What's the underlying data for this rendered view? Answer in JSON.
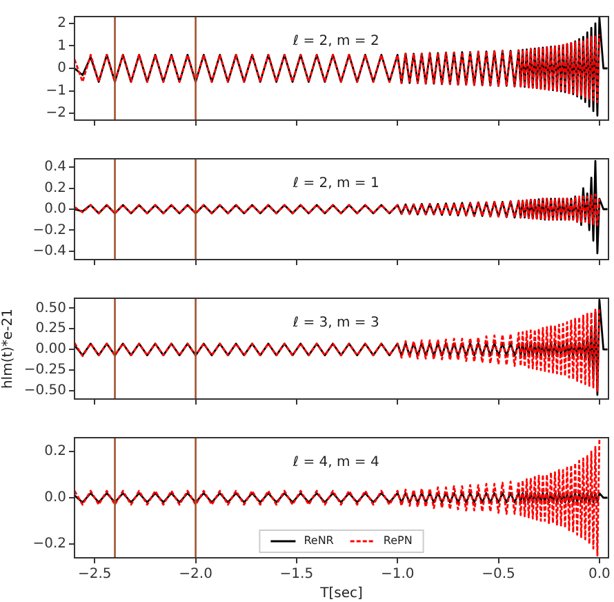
{
  "chart_data": [
    {
      "type": "line",
      "annotations": [
        "ℓ = 2, m = 2"
      ],
      "xlim": [
        -2.6,
        0.045
      ],
      "xticks": [
        {
          "value": -2.5,
          "label": null
        },
        {
          "value": -2.0,
          "label": null
        },
        {
          "value": -1.5,
          "label": null
        },
        {
          "value": -1.0,
          "label": null
        },
        {
          "value": -0.5,
          "label": null
        },
        {
          "value": 0.0,
          "label": null
        }
      ],
      "ylim": [
        -2.3,
        2.3
      ],
      "yticks": [
        {
          "value": -2,
          "label": "−2"
        },
        {
          "value": -1,
          "label": "−1"
        },
        0,
        1,
        2
      ],
      "tick_labels": "y",
      "marker": "none",
      "grid": false,
      "ref_lines": [
        {
          "axis": "x",
          "value": -2.4,
          "color": "#a0522d"
        },
        {
          "axis": "x",
          "value": -2.0,
          "color": "#a0522d"
        }
      ],
      "x": [
        -2.6,
        -2.56,
        -2.52,
        -2.48,
        -2.44,
        -2.4,
        -2.36,
        -2.32,
        -2.28,
        -2.24,
        -2.2,
        -2.16,
        -2.12,
        -2.08,
        -2.04,
        -2.0,
        -1.96,
        -1.92,
        -1.88,
        -1.84,
        -1.8,
        -1.76,
        -1.72,
        -1.68,
        -1.64,
        -1.6,
        -1.56,
        -1.52,
        -1.48,
        -1.44,
        -1.4,
        -1.36,
        -1.32,
        -1.28,
        -1.24,
        -1.2,
        -1.16,
        -1.12,
        -1.08,
        -1.04,
        -1.0,
        -0.98,
        -0.96,
        -0.94,
        -0.92,
        -0.9,
        -0.88,
        -0.86,
        -0.84,
        -0.82,
        -0.8,
        -0.78,
        -0.76,
        -0.74,
        -0.72,
        -0.7,
        -0.68,
        -0.66,
        -0.64,
        -0.62,
        -0.6,
        -0.58,
        -0.56,
        -0.54,
        -0.52,
        -0.5,
        -0.48,
        -0.46,
        -0.44,
        -0.42,
        -0.4,
        -0.39,
        -0.38,
        -0.37,
        -0.36,
        -0.35,
        -0.34,
        -0.33,
        -0.32,
        -0.31,
        -0.3,
        -0.29,
        -0.28,
        -0.27,
        -0.26,
        -0.25,
        -0.24,
        -0.23,
        -0.22,
        -0.21,
        -0.2,
        -0.19,
        -0.18,
        -0.17,
        -0.16,
        -0.15,
        -0.14,
        -0.13,
        -0.12,
        -0.11,
        -0.1,
        -0.09,
        -0.08,
        -0.07,
        -0.06,
        -0.05,
        -0.04,
        -0.03,
        -0.02,
        -0.01,
        0.0,
        0.02,
        0.04
      ],
      "series": [
        {
          "color": "#000000",
          "line_style": "solid",
          "values": [
            0,
            -0.3,
            0.5,
            -0.6,
            0.6,
            -0.6,
            0.6,
            -0.6,
            0.6,
            -0.6,
            0.6,
            -0.6,
            0.6,
            -0.6,
            0.6,
            -0.6,
            0.6,
            -0.6,
            0.6,
            -0.6,
            0.6,
            -0.6,
            0.6,
            -0.6,
            0.6,
            -0.6,
            0.6,
            -0.6,
            0.6,
            -0.6,
            0.6,
            -0.6,
            0.6,
            -0.6,
            0.6,
            -0.6,
            0.6,
            -0.6,
            0.6,
            -0.6,
            0.6,
            -0.65,
            0.65,
            -0.65,
            0.65,
            -0.65,
            0.65,
            -0.68,
            0.68,
            -0.68,
            0.68,
            -0.7,
            0.7,
            -0.7,
            0.7,
            -0.72,
            0.72,
            -0.72,
            0.72,
            -0.74,
            0.74,
            -0.75,
            0.75,
            -0.76,
            0.76,
            -0.78,
            0.78,
            -0.78,
            0.78,
            -0.8,
            0.8,
            -0.8,
            0.82,
            -0.82,
            0.84,
            -0.84,
            0.86,
            -0.86,
            0.88,
            -0.88,
            0.9,
            -0.9,
            0.92,
            -0.92,
            0.94,
            -0.95,
            0.96,
            -0.97,
            0.98,
            -1.0,
            1.0,
            -1.02,
            1.04,
            -1.06,
            1.08,
            -1.1,
            1.12,
            -1.15,
            1.2,
            -1.25,
            1.3,
            -1.35,
            1.4,
            -1.5,
            1.6,
            -1.7,
            1.8,
            -1.9,
            2.0,
            -2.1,
            2.25,
            0,
            0
          ]
        },
        {
          "color": "#ff0000",
          "line_style": "dashed",
          "values": [
            0.4,
            -0.6,
            0.6,
            -0.6,
            0.6,
            -0.6,
            0.6,
            -0.6,
            0.6,
            -0.6,
            0.6,
            -0.6,
            0.6,
            -0.6,
            0.6,
            -0.6,
            0.6,
            -0.6,
            0.6,
            -0.6,
            0.6,
            -0.6,
            0.6,
            -0.6,
            0.6,
            -0.6,
            0.6,
            -0.6,
            0.6,
            -0.6,
            0.6,
            -0.6,
            0.6,
            -0.6,
            0.6,
            -0.6,
            0.6,
            -0.6,
            0.6,
            -0.6,
            0.6,
            -0.65,
            0.65,
            -0.65,
            0.65,
            -0.65,
            0.65,
            -0.68,
            0.68,
            -0.68,
            0.68,
            -0.7,
            0.7,
            -0.7,
            0.7,
            -0.72,
            0.72,
            -0.72,
            0.72,
            -0.74,
            0.74,
            -0.75,
            0.75,
            -0.76,
            0.76,
            -0.78,
            0.78,
            -0.78,
            0.78,
            -0.8,
            0.8,
            -0.8,
            0.82,
            -0.82,
            0.84,
            -0.84,
            0.86,
            -0.86,
            0.88,
            -0.88,
            0.9,
            -0.9,
            0.92,
            -0.92,
            0.94,
            -0.95,
            0.96,
            -0.97,
            0.98,
            -1.0,
            1.0,
            -1.02,
            1.04,
            -1.06,
            1.08,
            -1.1,
            1.12,
            -1.14,
            1.16,
            -1.18,
            1.2,
            -1.22,
            1.25,
            -1.28,
            1.3,
            -1.35,
            1.4,
            -1.42,
            1.45,
            -1.5,
            1.5,
            null,
            null
          ]
        }
      ]
    },
    {
      "type": "line",
      "annotations": [
        "ℓ = 2, m = 1"
      ],
      "xlim": [
        -2.6,
        0.045
      ],
      "xticks": [
        {
          "value": -2.5,
          "label": null
        },
        {
          "value": -2.0,
          "label": null
        },
        {
          "value": -1.5,
          "label": null
        },
        {
          "value": -1.0,
          "label": null
        },
        {
          "value": -0.5,
          "label": null
        },
        {
          "value": 0.0,
          "label": null
        }
      ],
      "ylim": [
        -0.48,
        0.48
      ],
      "yticks": [
        {
          "value": -0.4,
          "label": "−0.4"
        },
        {
          "value": -0.2,
          "label": "−0.2"
        },
        {
          "value": 0,
          "label": "0.0"
        },
        0.2,
        0.4
      ],
      "tick_labels": "y",
      "marker": "none",
      "grid": false,
      "ref_lines": [
        {
          "axis": "x",
          "value": -2.4,
          "color": "#a0522d"
        },
        {
          "axis": "x",
          "value": -2.0,
          "color": "#a0522d"
        }
      ],
      "x": [
        -2.6,
        -2.56,
        -2.52,
        -2.48,
        -2.44,
        -2.4,
        -2.36,
        -2.32,
        -2.28,
        -2.24,
        -2.2,
        -2.16,
        -2.12,
        -2.08,
        -2.04,
        -2.0,
        -1.96,
        -1.92,
        -1.88,
        -1.84,
        -1.8,
        -1.76,
        -1.72,
        -1.68,
        -1.64,
        -1.6,
        -1.56,
        -1.52,
        -1.48,
        -1.44,
        -1.4,
        -1.36,
        -1.32,
        -1.28,
        -1.24,
        -1.2,
        -1.16,
        -1.12,
        -1.08,
        -1.04,
        -1.0,
        -0.98,
        -0.96,
        -0.94,
        -0.92,
        -0.9,
        -0.88,
        -0.86,
        -0.84,
        -0.82,
        -0.8,
        -0.78,
        -0.76,
        -0.74,
        -0.72,
        -0.7,
        -0.68,
        -0.66,
        -0.64,
        -0.62,
        -0.6,
        -0.58,
        -0.56,
        -0.54,
        -0.52,
        -0.5,
        -0.48,
        -0.46,
        -0.44,
        -0.42,
        -0.4,
        -0.39,
        -0.38,
        -0.37,
        -0.36,
        -0.35,
        -0.34,
        -0.33,
        -0.32,
        -0.31,
        -0.3,
        -0.29,
        -0.28,
        -0.27,
        -0.26,
        -0.25,
        -0.24,
        -0.23,
        -0.22,
        -0.21,
        -0.2,
        -0.19,
        -0.18,
        -0.17,
        -0.16,
        -0.15,
        -0.14,
        -0.13,
        -0.12,
        -0.11,
        -0.1,
        -0.09,
        -0.08,
        -0.07,
        -0.06,
        -0.05,
        -0.04,
        -0.03,
        -0.02,
        -0.01,
        0.0,
        0.02,
        0.04
      ],
      "series": [
        {
          "color": "#000000",
          "line_style": "solid",
          "values": [
            0,
            -0.02,
            0.04,
            -0.04,
            0.04,
            -0.04,
            0.04,
            -0.04,
            0.04,
            -0.04,
            0.04,
            -0.04,
            0.04,
            -0.04,
            0.04,
            -0.04,
            0.04,
            -0.04,
            0.04,
            -0.04,
            0.04,
            -0.04,
            0.04,
            -0.04,
            0.04,
            -0.04,
            0.04,
            -0.04,
            0.04,
            -0.04,
            0.04,
            -0.04,
            0.04,
            -0.04,
            0.04,
            -0.04,
            0.04,
            -0.04,
            0.04,
            -0.04,
            0.04,
            -0.045,
            0.045,
            -0.045,
            0.045,
            -0.05,
            0.05,
            -0.05,
            0.05,
            -0.05,
            0.05,
            -0.055,
            0.055,
            -0.055,
            0.055,
            -0.06,
            0.06,
            -0.06,
            0.06,
            -0.065,
            0.065,
            -0.065,
            0.065,
            -0.07,
            0.07,
            -0.07,
            0.07,
            -0.075,
            0.075,
            -0.08,
            0.08,
            -0.08,
            0.08,
            -0.08,
            0.085,
            -0.085,
            0.09,
            -0.09,
            0.09,
            -0.09,
            0.095,
            -0.095,
            0.1,
            -0.1,
            0.1,
            -0.1,
            0.1,
            -0.1,
            0.1,
            -0.1,
            0.1,
            -0.1,
            0.1,
            -0.1,
            0.1,
            -0.1,
            0.1,
            -0.1,
            0.12,
            -0.12,
            0.1,
            -0.15,
            0.2,
            -0.1,
            0.15,
            -0.2,
            0.3,
            -0.3,
            0.46,
            -0.42,
            0.1,
            0,
            0
          ]
        },
        {
          "color": "#ff0000",
          "line_style": "dashed",
          "values": [
            0.02,
            -0.03,
            0.04,
            -0.04,
            0.04,
            -0.04,
            0.04,
            -0.04,
            0.04,
            -0.04,
            0.04,
            -0.04,
            0.04,
            -0.04,
            0.04,
            -0.04,
            0.04,
            -0.04,
            0.04,
            -0.04,
            0.04,
            -0.04,
            0.04,
            -0.04,
            0.04,
            -0.04,
            0.04,
            -0.04,
            0.04,
            -0.04,
            0.04,
            -0.04,
            0.04,
            -0.04,
            0.04,
            -0.04,
            0.04,
            -0.04,
            0.04,
            -0.04,
            0.04,
            -0.045,
            0.045,
            -0.045,
            0.045,
            -0.05,
            0.05,
            -0.05,
            0.05,
            -0.05,
            0.05,
            -0.055,
            0.055,
            -0.055,
            0.055,
            -0.06,
            0.06,
            -0.06,
            0.06,
            -0.065,
            0.065,
            -0.065,
            0.065,
            -0.07,
            0.07,
            -0.07,
            0.07,
            -0.075,
            0.075,
            -0.08,
            0.08,
            -0.08,
            0.08,
            -0.08,
            0.085,
            -0.085,
            0.09,
            -0.09,
            0.09,
            -0.09,
            0.095,
            -0.095,
            0.1,
            -0.1,
            0.1,
            -0.1,
            0.1,
            -0.1,
            0.1,
            -0.1,
            0.1,
            -0.1,
            0.1,
            -0.1,
            0.1,
            -0.1,
            0.1,
            -0.1,
            0.12,
            -0.12,
            0.12,
            -0.12,
            0.12,
            -0.12,
            0.12,
            -0.13,
            0.13,
            -0.14,
            0.14,
            -0.15,
            0.1,
            null,
            null
          ]
        }
      ]
    },
    {
      "type": "line",
      "annotations": [
        "ℓ = 3, m = 3"
      ],
      "ylabel": "hlm(t)*e-21",
      "xlim": [
        -2.6,
        0.045
      ],
      "xticks": [
        {
          "value": -2.5,
          "label": null
        },
        {
          "value": -2.0,
          "label": null
        },
        {
          "value": -1.5,
          "label": null
        },
        {
          "value": -1.0,
          "label": null
        },
        {
          "value": -0.5,
          "label": null
        },
        {
          "value": 0.0,
          "label": null
        }
      ],
      "ylim": [
        -0.6,
        0.62
      ],
      "yticks": [
        {
          "value": -0.5,
          "label": "−0.50"
        },
        {
          "value": -0.25,
          "label": "−0.25"
        },
        {
          "value": 0,
          "label": "0.00"
        },
        {
          "value": 0.25,
          "label": "0.25"
        },
        {
          "value": 0.5,
          "label": "0.50"
        }
      ],
      "tick_labels": "y",
      "marker": "none",
      "grid": false,
      "ref_lines": [
        {
          "axis": "x",
          "value": -2.4,
          "color": "#a0522d"
        },
        {
          "axis": "x",
          "value": -2.0,
          "color": "#a0522d"
        }
      ],
      "x": [
        -2.6,
        -2.56,
        -2.52,
        -2.48,
        -2.44,
        -2.4,
        -2.36,
        -2.32,
        -2.28,
        -2.24,
        -2.2,
        -2.16,
        -2.12,
        -2.08,
        -2.04,
        -2.0,
        -1.96,
        -1.92,
        -1.88,
        -1.84,
        -1.8,
        -1.76,
        -1.72,
        -1.68,
        -1.64,
        -1.6,
        -1.56,
        -1.52,
        -1.48,
        -1.44,
        -1.4,
        -1.36,
        -1.32,
        -1.28,
        -1.24,
        -1.2,
        -1.16,
        -1.12,
        -1.08,
        -1.04,
        -1.0,
        -0.98,
        -0.96,
        -0.94,
        -0.92,
        -0.9,
        -0.88,
        -0.86,
        -0.84,
        -0.82,
        -0.8,
        -0.78,
        -0.76,
        -0.74,
        -0.72,
        -0.7,
        -0.68,
        -0.66,
        -0.64,
        -0.62,
        -0.6,
        -0.58,
        -0.56,
        -0.54,
        -0.52,
        -0.5,
        -0.48,
        -0.46,
        -0.44,
        -0.42,
        -0.4,
        -0.39,
        -0.38,
        -0.37,
        -0.36,
        -0.35,
        -0.34,
        -0.33,
        -0.32,
        -0.31,
        -0.3,
        -0.29,
        -0.28,
        -0.27,
        -0.26,
        -0.25,
        -0.24,
        -0.23,
        -0.22,
        -0.21,
        -0.2,
        -0.19,
        -0.18,
        -0.17,
        -0.16,
        -0.15,
        -0.14,
        -0.13,
        -0.12,
        -0.11,
        -0.1,
        -0.09,
        -0.08,
        -0.07,
        -0.06,
        -0.05,
        -0.04,
        -0.03,
        -0.02,
        -0.01,
        0.0,
        0.02,
        0.04
      ],
      "series": [
        {
          "color": "#000000",
          "line_style": "solid",
          "values": [
            0.05,
            -0.07,
            0.07,
            -0.07,
            0.07,
            -0.07,
            0.07,
            -0.07,
            0.07,
            -0.07,
            0.07,
            -0.07,
            0.07,
            -0.07,
            0.07,
            -0.07,
            0.07,
            -0.07,
            0.07,
            -0.07,
            0.07,
            -0.07,
            0.07,
            -0.07,
            0.07,
            -0.07,
            0.07,
            -0.07,
            0.07,
            -0.07,
            0.07,
            -0.07,
            0.07,
            -0.07,
            0.07,
            -0.07,
            0.07,
            -0.07,
            0.07,
            -0.07,
            0.07,
            -0.075,
            0.075,
            -0.075,
            0.075,
            -0.075,
            0.075,
            -0.075,
            0.075,
            -0.075,
            0.075,
            -0.075,
            0.075,
            -0.075,
            0.075,
            -0.075,
            0.075,
            -0.075,
            0.075,
            -0.075,
            0.075,
            -0.075,
            0.075,
            -0.075,
            0.075,
            -0.075,
            0.075,
            -0.075,
            0.075,
            -0.075,
            0.075,
            -0.08,
            0.08,
            -0.08,
            0.08,
            -0.08,
            0.08,
            -0.08,
            0.08,
            -0.08,
            0.08,
            -0.08,
            0.08,
            -0.08,
            0.08,
            -0.08,
            0.08,
            -0.08,
            0.08,
            -0.08,
            0.08,
            -0.08,
            0.08,
            -0.08,
            0.08,
            -0.08,
            0.08,
            -0.08,
            0.08,
            -0.08,
            0.08,
            -0.08,
            0.1,
            -0.12,
            0.15,
            -0.2,
            0.25,
            -0.35,
            0.45,
            -0.55,
            0.6,
            0,
            0
          ]
        },
        {
          "color": "#ff0000",
          "line_style": "dashed",
          "values": [
            0.08,
            -0.08,
            0.07,
            -0.07,
            0.07,
            -0.07,
            0.07,
            -0.07,
            0.07,
            -0.07,
            0.07,
            -0.07,
            0.07,
            -0.07,
            0.07,
            -0.07,
            0.07,
            -0.07,
            0.07,
            -0.07,
            0.07,
            -0.07,
            0.07,
            -0.07,
            0.07,
            -0.07,
            0.07,
            -0.07,
            0.07,
            -0.07,
            0.07,
            -0.07,
            0.07,
            -0.07,
            0.07,
            -0.07,
            0.07,
            -0.07,
            0.07,
            -0.07,
            0.07,
            -0.1,
            0.1,
            -0.1,
            0.1,
            -0.11,
            0.11,
            -0.11,
            0.11,
            -0.12,
            0.12,
            -0.12,
            0.12,
            -0.13,
            0.13,
            -0.13,
            0.13,
            -0.14,
            0.14,
            -0.15,
            0.15,
            -0.16,
            0.16,
            -0.17,
            0.17,
            -0.18,
            0.18,
            -0.19,
            0.19,
            -0.2,
            0.2,
            -0.2,
            0.21,
            -0.21,
            0.22,
            -0.22,
            0.23,
            -0.23,
            0.24,
            -0.24,
            0.25,
            -0.25,
            0.26,
            -0.26,
            0.27,
            -0.27,
            0.28,
            -0.28,
            0.29,
            -0.29,
            0.3,
            -0.3,
            0.31,
            -0.32,
            0.33,
            -0.34,
            0.35,
            -0.36,
            0.37,
            -0.38,
            0.39,
            -0.4,
            0.41,
            -0.42,
            0.43,
            -0.44,
            0.45,
            -0.46,
            0.48,
            -0.5,
            0.5,
            null,
            null
          ]
        }
      ]
    },
    {
      "type": "line",
      "annotations": [
        "ℓ = 4, m = 4"
      ],
      "xlabel": "T[sec]",
      "xlim": [
        -2.6,
        0.045
      ],
      "xticks": [
        {
          "value": -2.5,
          "label": "−2.5"
        },
        {
          "value": -2.0,
          "label": "−2.0"
        },
        {
          "value": -1.5,
          "label": "−1.5"
        },
        {
          "value": -1.0,
          "label": "−1.0"
        },
        {
          "value": -0.5,
          "label": "−0.5"
        },
        {
          "value": 0.0,
          "label": "0.0"
        }
      ],
      "ylim": [
        -0.26,
        0.26
      ],
      "yticks": [
        {
          "value": -0.2,
          "label": "−0.2"
        },
        {
          "value": 0,
          "label": "0.0"
        },
        0.2
      ],
      "marker": "none",
      "grid": false,
      "legend": "bottom",
      "ref_lines": [
        {
          "axis": "x",
          "value": -2.4,
          "color": "#a0522d"
        },
        {
          "axis": "x",
          "value": -2.0,
          "color": "#a0522d"
        }
      ],
      "x": [
        -2.6,
        -2.56,
        -2.52,
        -2.48,
        -2.44,
        -2.4,
        -2.36,
        -2.32,
        -2.28,
        -2.24,
        -2.2,
        -2.16,
        -2.12,
        -2.08,
        -2.04,
        -2.0,
        -1.96,
        -1.92,
        -1.88,
        -1.84,
        -1.8,
        -1.76,
        -1.72,
        -1.68,
        -1.64,
        -1.6,
        -1.56,
        -1.52,
        -1.48,
        -1.44,
        -1.4,
        -1.36,
        -1.32,
        -1.28,
        -1.24,
        -1.2,
        -1.16,
        -1.12,
        -1.08,
        -1.04,
        -1.0,
        -0.98,
        -0.96,
        -0.94,
        -0.92,
        -0.9,
        -0.88,
        -0.86,
        -0.84,
        -0.82,
        -0.8,
        -0.78,
        -0.76,
        -0.74,
        -0.72,
        -0.7,
        -0.68,
        -0.66,
        -0.64,
        -0.62,
        -0.6,
        -0.58,
        -0.56,
        -0.54,
        -0.52,
        -0.5,
        -0.48,
        -0.46,
        -0.44,
        -0.42,
        -0.4,
        -0.39,
        -0.38,
        -0.37,
        -0.36,
        -0.35,
        -0.34,
        -0.33,
        -0.32,
        -0.31,
        -0.3,
        -0.29,
        -0.28,
        -0.27,
        -0.26,
        -0.25,
        -0.24,
        -0.23,
        -0.22,
        -0.21,
        -0.2,
        -0.19,
        -0.18,
        -0.17,
        -0.16,
        -0.15,
        -0.14,
        -0.13,
        -0.12,
        -0.11,
        -0.1,
        -0.09,
        -0.08,
        -0.07,
        -0.06,
        -0.05,
        -0.04,
        -0.03,
        -0.02,
        -0.01,
        0.0,
        0.02,
        0.04
      ],
      "series": [
        {
          "name": "ReNR",
          "color": "#000000",
          "line_style": "solid",
          "values": [
            0.01,
            -0.02,
            0.02,
            -0.02,
            0.02,
            -0.02,
            0.02,
            -0.02,
            0.02,
            -0.02,
            0.02,
            -0.02,
            0.02,
            -0.02,
            0.02,
            -0.02,
            0.02,
            -0.02,
            0.02,
            -0.02,
            0.02,
            -0.02,
            0.02,
            -0.02,
            0.02,
            -0.02,
            0.02,
            -0.02,
            0.02,
            -0.02,
            0.02,
            -0.02,
            0.02,
            -0.02,
            0.02,
            -0.02,
            0.02,
            -0.02,
            0.02,
            -0.02,
            0.02,
            -0.02,
            0.02,
            -0.02,
            0.02,
            -0.02,
            0.02,
            -0.02,
            0.02,
            -0.02,
            0.02,
            -0.02,
            0.02,
            -0.02,
            0.02,
            -0.02,
            0.02,
            -0.02,
            0.02,
            -0.02,
            0.02,
            -0.02,
            0.02,
            -0.02,
            0.02,
            -0.02,
            0.02,
            -0.02,
            0.02,
            -0.02,
            0.02,
            -0.02,
            0.02,
            -0.02,
            0.02,
            -0.02,
            0.02,
            -0.02,
            0.02,
            -0.02,
            0.02,
            -0.02,
            0.02,
            -0.02,
            0.02,
            -0.02,
            0.02,
            -0.02,
            0.02,
            -0.02,
            0.02,
            -0.02,
            0.02,
            -0.02,
            0.02,
            -0.02,
            0.02,
            -0.02,
            0.02,
            -0.02,
            0.02,
            -0.02,
            0.02,
            -0.02,
            0.02,
            -0.02,
            0.02,
            -0.02,
            0.02,
            -0.02,
            0.02,
            0,
            0
          ]
        },
        {
          "name": "RePN",
          "color": "#ff0000",
          "line_style": "dashed",
          "values": [
            0.03,
            -0.03,
            0.03,
            -0.03,
            0.03,
            -0.03,
            0.03,
            -0.03,
            0.03,
            -0.03,
            0.03,
            -0.03,
            0.03,
            -0.03,
            0.03,
            -0.03,
            0.03,
            -0.03,
            0.03,
            -0.03,
            0.03,
            -0.03,
            0.03,
            -0.03,
            0.03,
            -0.03,
            0.03,
            -0.03,
            0.03,
            -0.03,
            0.03,
            -0.03,
            0.03,
            -0.03,
            0.03,
            -0.03,
            0.03,
            -0.03,
            0.03,
            -0.03,
            0.03,
            -0.035,
            0.035,
            -0.035,
            0.035,
            -0.04,
            0.04,
            -0.04,
            0.04,
            -0.045,
            0.045,
            -0.045,
            0.045,
            -0.05,
            0.05,
            -0.05,
            0.05,
            -0.055,
            0.055,
            -0.055,
            0.055,
            -0.06,
            0.06,
            -0.06,
            0.06,
            -0.065,
            0.065,
            -0.07,
            0.07,
            -0.07,
            0.07,
            -0.075,
            0.075,
            -0.08,
            0.08,
            -0.085,
            0.085,
            -0.09,
            0.09,
            -0.095,
            0.095,
            -0.1,
            0.1,
            -0.1,
            0.1,
            -0.11,
            0.11,
            -0.11,
            0.11,
            -0.12,
            0.12,
            -0.12,
            0.12,
            -0.13,
            0.13,
            -0.14,
            0.14,
            -0.15,
            0.15,
            -0.16,
            0.16,
            -0.17,
            0.17,
            -0.18,
            0.18,
            -0.2,
            0.2,
            -0.22,
            0.22,
            -0.25,
            0.25,
            null,
            null
          ]
        }
      ]
    }
  ]
}
